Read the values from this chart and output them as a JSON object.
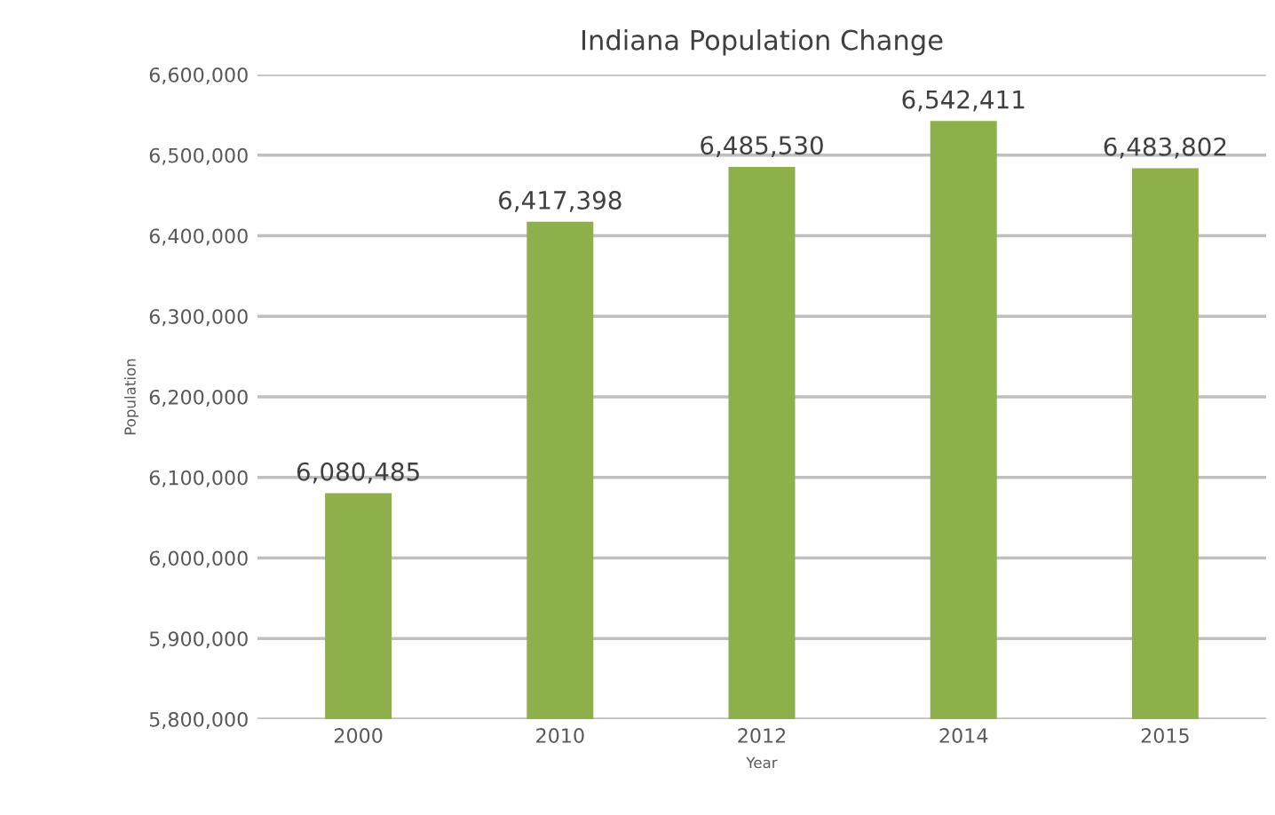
{
  "chart_data": {
    "type": "bar",
    "title": "Indiana Population Change",
    "xlabel": "Year",
    "ylabel": "Population",
    "categories": [
      "2000",
      "2010",
      "2012",
      "2014",
      "2015"
    ],
    "values": [
      6080485,
      6417398,
      6485530,
      6542411,
      6483802
    ],
    "value_labels": [
      "6,080,485",
      "6,417,398",
      "6,485,530",
      "6,542,411",
      "6,483,802"
    ],
    "color": "#8db04a",
    "ylim": [
      5800000,
      6600000
    ],
    "yticks": [
      {
        "value": 5800000,
        "label": "5,800,000"
      },
      {
        "value": 5900000,
        "label": "5,900,000"
      },
      {
        "value": 6000000,
        "label": "6,000,000"
      },
      {
        "value": 6100000,
        "label": "6,100,000"
      },
      {
        "value": 6200000,
        "label": "6,200,000"
      },
      {
        "value": 6300000,
        "label": "6,300,000"
      },
      {
        "value": 6400000,
        "label": "6,400,000"
      },
      {
        "value": 6500000,
        "label": "6,500,000"
      },
      {
        "value": 6600000,
        "label": "6,600,000"
      }
    ],
    "grid": "y",
    "legend": false
  }
}
